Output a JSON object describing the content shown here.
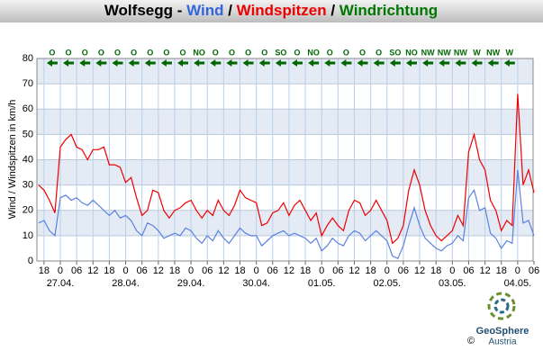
{
  "chart_data": {
    "type": "line",
    "title_parts": [
      {
        "text": "Wolfsegg - ",
        "color": "#000000"
      },
      {
        "text": "Wind",
        "color": "#3366dd"
      },
      {
        "text": " / ",
        "color": "#000000"
      },
      {
        "text": "Windspitzen",
        "color": "#ee0000"
      },
      {
        "text": " / ",
        "color": "#000000"
      },
      {
        "text": "Windrichtung",
        "color": "#007700"
      }
    ],
    "ylabel": "Wind / Windspitzen in km/h",
    "x": [
      -8,
      -6,
      -4,
      -2,
      0,
      2,
      4,
      6,
      8,
      10,
      12,
      14,
      16,
      18,
      20,
      22,
      24,
      26,
      28,
      30,
      32,
      34,
      36,
      38,
      40,
      42,
      44,
      46,
      48,
      50,
      52,
      54,
      56,
      58,
      60,
      62,
      64,
      66,
      68,
      70,
      72,
      74,
      76,
      78,
      80,
      82,
      84,
      86,
      88,
      90,
      92,
      94,
      96,
      98,
      100,
      102,
      104,
      106,
      108,
      110,
      112,
      114,
      116,
      118,
      120,
      122,
      124,
      126,
      128,
      130,
      132,
      134,
      136,
      138,
      140,
      142,
      144,
      146,
      148,
      150,
      152,
      154,
      156,
      158,
      160,
      162,
      164,
      166,
      168,
      170,
      172,
      174
    ],
    "series": [
      {
        "name": "Windspitzen",
        "color": "#ee0000",
        "values": [
          30,
          28,
          24,
          19,
          45,
          48,
          50,
          45,
          44,
          40,
          44,
          44,
          45,
          38,
          38,
          37,
          31,
          33,
          25,
          18,
          20,
          28,
          27,
          20,
          17,
          20,
          21,
          23,
          24,
          20,
          17,
          20,
          18,
          24,
          20,
          18,
          22,
          28,
          25,
          24,
          23,
          14,
          15,
          19,
          20,
          23,
          18,
          22,
          24,
          20,
          16,
          19,
          10,
          14,
          17,
          14,
          12,
          20,
          24,
          23,
          18,
          20,
          24,
          20,
          16,
          7,
          9,
          14,
          28,
          36,
          30,
          20,
          14,
          10,
          8,
          10,
          12,
          18,
          14,
          43,
          50,
          40,
          36,
          24,
          20,
          12,
          16,
          14,
          66,
          30,
          36,
          27
        ]
      },
      {
        "name": "Wind",
        "color": "#5b82e0",
        "values": [
          15,
          16,
          12,
          10,
          25,
          26,
          24,
          25,
          23,
          22,
          24,
          22,
          20,
          18,
          20,
          17,
          18,
          16,
          12,
          10,
          15,
          14,
          12,
          9,
          10,
          11,
          10,
          13,
          12,
          9,
          7,
          10,
          8,
          12,
          9,
          7,
          10,
          13,
          11,
          10,
          10,
          6,
          8,
          10,
          11,
          12,
          10,
          11,
          10,
          9,
          7,
          9,
          4,
          6,
          9,
          7,
          6,
          10,
          12,
          11,
          8,
          10,
          12,
          10,
          8,
          2,
          1,
          6,
          14,
          21,
          14,
          9,
          7,
          5,
          4,
          6,
          7,
          10,
          8,
          25,
          28,
          20,
          21,
          11,
          9,
          5,
          8,
          7,
          36,
          15,
          16,
          10
        ]
      }
    ],
    "xlim": [
      -8.6,
      174
    ],
    "ylim": [
      0,
      80
    ],
    "yticks": [
      0,
      10,
      20,
      30,
      40,
      50,
      60,
      70,
      80
    ],
    "xticks": [
      {
        "value": -6,
        "label": "18"
      },
      {
        "value": 0,
        "label": "0"
      },
      {
        "value": 6,
        "label": "06"
      },
      {
        "value": 12,
        "label": "12"
      },
      {
        "value": 18,
        "label": "18"
      },
      {
        "value": 24,
        "label": "0"
      },
      {
        "value": 30,
        "label": "06"
      },
      {
        "value": 36,
        "label": "12"
      },
      {
        "value": 42,
        "label": "18"
      },
      {
        "value": 48,
        "label": "0"
      },
      {
        "value": 54,
        "label": "06"
      },
      {
        "value": 60,
        "label": "12"
      },
      {
        "value": 66,
        "label": "18"
      },
      {
        "value": 72,
        "label": "0"
      },
      {
        "value": 78,
        "label": "06"
      },
      {
        "value": 84,
        "label": "12"
      },
      {
        "value": 90,
        "label": "18"
      },
      {
        "value": 96,
        "label": "0"
      },
      {
        "value": 102,
        "label": "06"
      },
      {
        "value": 108,
        "label": "12"
      },
      {
        "value": 114,
        "label": "18"
      },
      {
        "value": 120,
        "label": "0"
      },
      {
        "value": 126,
        "label": "06"
      },
      {
        "value": 132,
        "label": "12"
      },
      {
        "value": 138,
        "label": "18"
      },
      {
        "value": 144,
        "label": "0"
      },
      {
        "value": 150,
        "label": "06"
      },
      {
        "value": 156,
        "label": "12"
      },
      {
        "value": 162,
        "label": "18"
      },
      {
        "value": 168,
        "label": "0"
      },
      {
        "value": 174,
        "label": "06"
      }
    ],
    "date_ticks": [
      {
        "value": 0,
        "label": "27.04."
      },
      {
        "value": 24,
        "label": "28.04."
      },
      {
        "value": 48,
        "label": "29.04."
      },
      {
        "value": 72,
        "label": "30.04."
      },
      {
        "value": 96,
        "label": "01.05."
      },
      {
        "value": 120,
        "label": "02.05."
      },
      {
        "value": 144,
        "label": "03.05."
      },
      {
        "value": 168,
        "label": "04.05."
      }
    ],
    "directions": {
      "x": [
        -3,
        3,
        9,
        15,
        21,
        27,
        33,
        39,
        45,
        51,
        57,
        63,
        69,
        75,
        81,
        87,
        93,
        99,
        105,
        111,
        117,
        123,
        129,
        135,
        141,
        147,
        153,
        159,
        165
      ],
      "labels": [
        "O",
        "O",
        "O",
        "O",
        "O",
        "O",
        "O",
        "O",
        "O",
        "NO",
        "O",
        "O",
        "O",
        "O",
        "SO",
        "O",
        "NO",
        "O",
        "O",
        "O",
        "O",
        "SO",
        "NO",
        "NW",
        "NW",
        "NW",
        "W",
        "NW",
        "W"
      ]
    },
    "grid": true,
    "logo": {
      "name": "GeoSphere",
      "sub": "Austria",
      "copyright": "©"
    }
  }
}
